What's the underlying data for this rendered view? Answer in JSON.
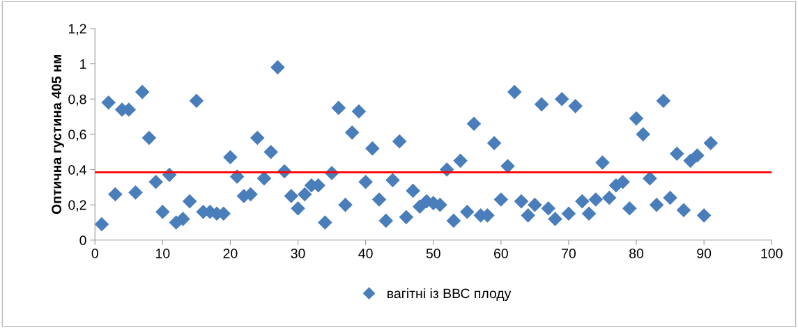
{
  "chart_data": {
    "type": "scatter",
    "ylabel": "Оптична густина 405 нм",
    "marker": "diamond",
    "legend": "bottom",
    "grid": false,
    "xlim": [
      0,
      100
    ],
    "xticks": [
      0,
      10,
      20,
      30,
      40,
      50,
      60,
      70,
      80,
      90,
      100
    ],
    "ylim": [
      0,
      1.2
    ],
    "yticks": [
      0,
      {
        "value": 0.2,
        "label": "0,2"
      },
      {
        "value": 0.4,
        "label": "0,4"
      },
      {
        "value": 0.6,
        "label": "0,6"
      },
      {
        "value": 0.8,
        "label": "0,8"
      },
      1,
      {
        "value": 1.2,
        "label": "1,2"
      }
    ],
    "x": [
      1,
      2,
      3,
      4,
      5,
      6,
      7,
      8,
      9,
      10,
      11,
      12,
      13,
      14,
      15,
      16,
      17,
      18,
      19,
      20,
      21,
      22,
      23,
      24,
      25,
      26,
      27,
      28,
      29,
      30,
      31,
      32,
      33,
      34,
      35,
      36,
      37,
      38,
      39,
      40,
      41,
      42,
      43,
      44,
      45,
      46,
      47,
      48,
      49,
      50,
      51,
      52,
      53,
      54,
      55,
      56,
      57,
      58,
      59,
      60,
      61,
      62,
      63,
      64,
      65,
      66,
      67,
      68,
      69,
      70,
      71,
      72,
      73,
      74,
      75,
      76,
      77,
      78,
      79,
      80,
      81,
      82,
      83,
      84,
      85,
      86,
      87,
      88,
      89,
      90,
      91
    ],
    "series": [
      {
        "name": "вагітні із ВВС плоду",
        "color": "#4a7ebb",
        "values": [
          0.09,
          0.78,
          0.26,
          0.74,
          0.74,
          0.27,
          0.84,
          0.58,
          0.33,
          0.16,
          0.37,
          0.1,
          0.12,
          0.22,
          0.79,
          0.16,
          0.16,
          0.15,
          0.15,
          0.47,
          0.36,
          0.25,
          0.26,
          0.58,
          0.35,
          0.5,
          0.98,
          0.39,
          0.25,
          0.18,
          0.26,
          0.31,
          0.31,
          0.1,
          0.38,
          0.75,
          0.2,
          0.61,
          0.73,
          0.33,
          0.52,
          0.23,
          0.11,
          0.34,
          0.56,
          0.13,
          0.28,
          0.19,
          0.22,
          0.21,
          0.2,
          0.4,
          0.11,
          0.45,
          0.16,
          0.66,
          0.14,
          0.14,
          0.55,
          0.23,
          0.42,
          0.84,
          0.22,
          0.14,
          0.2,
          0.77,
          0.18,
          0.12,
          0.8,
          0.15,
          0.76,
          0.22,
          0.15,
          0.23,
          0.44,
          0.24,
          0.31,
          0.33,
          0.18,
          0.69,
          0.6,
          0.35,
          0.2,
          0.79,
          0.24,
          0.49,
          0.17,
          0.45,
          0.48,
          0.14,
          0.55
        ]
      }
    ],
    "ref_lines": [
      {
        "axis": "y",
        "value": 0.385,
        "color": "#ff0000"
      }
    ]
  }
}
